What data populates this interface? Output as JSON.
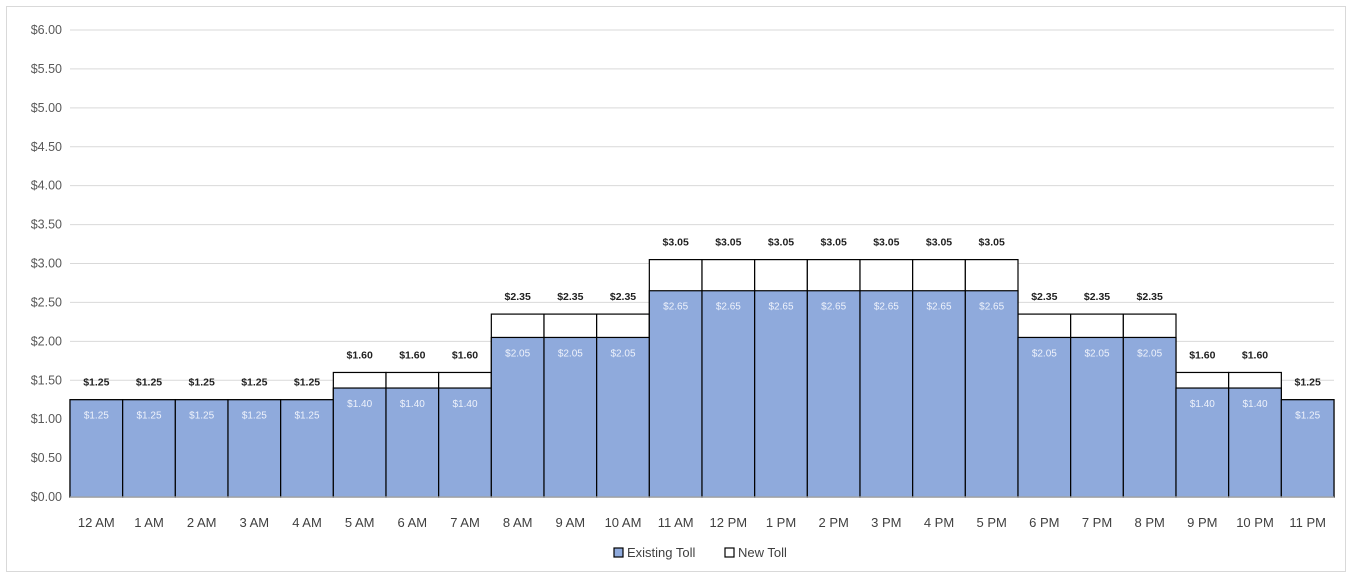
{
  "chart_data": {
    "type": "bar",
    "title": "",
    "xlabel": "",
    "ylabel": "",
    "ylim": [
      0,
      6
    ],
    "ytick_step": 0.5,
    "ytick_labels": [
      "$0.00",
      "$0.50",
      "$1.00",
      "$1.50",
      "$2.00",
      "$2.50",
      "$3.00",
      "$3.50",
      "$4.00",
      "$4.50",
      "$5.00",
      "$5.50",
      "$6.00"
    ],
    "grid": true,
    "legend_position": "bottom",
    "categories": [
      "12 AM",
      "1 AM",
      "2 AM",
      "3 AM",
      "4 AM",
      "5 AM",
      "6 AM",
      "7 AM",
      "8 AM",
      "9 AM",
      "10 AM",
      "11 AM",
      "12 PM",
      "1 PM",
      "2 PM",
      "3 PM",
      "4 PM",
      "5 PM",
      "6 PM",
      "7 PM",
      "8 PM",
      "9 PM",
      "10 PM",
      "11 PM"
    ],
    "series": [
      {
        "name": "Existing Toll",
        "color": "#8faadc",
        "values": [
          1.25,
          1.25,
          1.25,
          1.25,
          1.25,
          1.4,
          1.4,
          1.4,
          2.05,
          2.05,
          2.05,
          2.65,
          2.65,
          2.65,
          2.65,
          2.65,
          2.65,
          2.65,
          2.05,
          2.05,
          2.05,
          1.4,
          1.4,
          1.25
        ],
        "labels": [
          "$1.25",
          "$1.25",
          "$1.25",
          "$1.25",
          "$1.25",
          "$1.40",
          "$1.40",
          "$1.40",
          "$2.05",
          "$2.05",
          "$2.05",
          "$2.65",
          "$2.65",
          "$2.65",
          "$2.65",
          "$2.65",
          "$2.65",
          "$2.65",
          "$2.05",
          "$2.05",
          "$2.05",
          "$1.40",
          "$1.40",
          "$1.25"
        ]
      },
      {
        "name": "New Toll",
        "color": "#ffffff",
        "values": [
          1.25,
          1.25,
          1.25,
          1.25,
          1.25,
          1.6,
          1.6,
          1.6,
          2.35,
          2.35,
          2.35,
          3.05,
          3.05,
          3.05,
          3.05,
          3.05,
          3.05,
          3.05,
          2.35,
          2.35,
          2.35,
          1.6,
          1.6,
          1.25
        ],
        "labels": [
          "$1.25",
          "$1.25",
          "$1.25",
          "$1.25",
          "$1.25",
          "$1.60",
          "$1.60",
          "$1.60",
          "$2.35",
          "$2.35",
          "$2.35",
          "$3.05",
          "$3.05",
          "$3.05",
          "$3.05",
          "$3.05",
          "$3.05",
          "$3.05",
          "$2.35",
          "$2.35",
          "$2.35",
          "$1.60",
          "$1.60",
          "$1.25"
        ]
      }
    ]
  }
}
